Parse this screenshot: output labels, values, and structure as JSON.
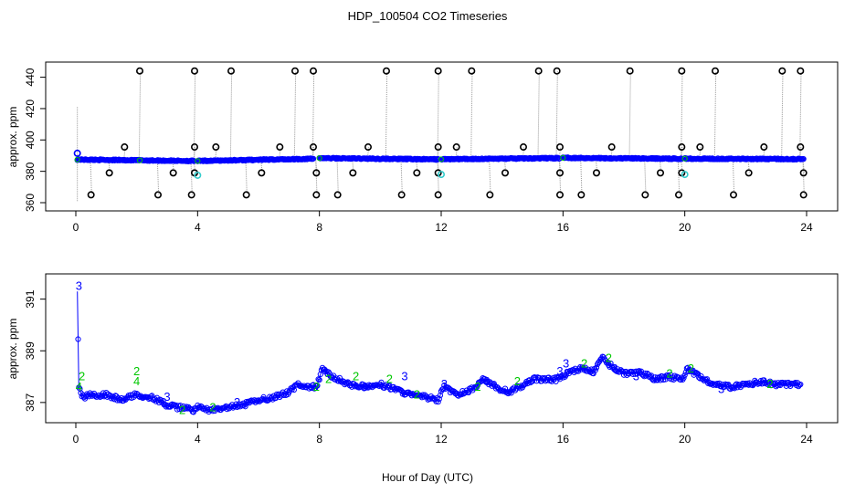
{
  "title": "HDP_100504  CO2 Timeseries",
  "xlabel": "Hour of Day (UTC)",
  "colors": {
    "frame": "#000000",
    "series_blue": "#0000ff",
    "series_green": "#00c800",
    "series_cyan": "#33cccc",
    "series_gray": "#9a9a9a"
  },
  "chart_data": [
    {
      "type": "scatter",
      "ylabel": "approx. ppm",
      "xlim": [
        0,
        24
      ],
      "ylim": [
        360,
        445
      ],
      "xticks": [
        0,
        4,
        8,
        12,
        16,
        20,
        24
      ],
      "yticks": [
        360,
        380,
        400,
        420,
        440
      ],
      "baseline_segments": [
        {
          "x": [
            0.05,
            2.1
          ],
          "y": [
            387.5,
            387.0
          ]
        },
        {
          "x": [
            2.1,
            3.9
          ],
          "y": [
            387.0,
            386.6
          ]
        },
        {
          "x": [
            4.0,
            7.8
          ],
          "y": [
            386.6,
            388.0
          ]
        },
        {
          "x": [
            8.0,
            11.9
          ],
          "y": [
            388.4,
            387.6
          ]
        },
        {
          "x": [
            12.0,
            15.9
          ],
          "y": [
            387.7,
            388.4
          ]
        },
        {
          "x": [
            16.0,
            19.9
          ],
          "y": [
            388.6,
            388.0
          ]
        },
        {
          "x": [
            20.0,
            23.9
          ],
          "y": [
            388.1,
            387.8
          ]
        }
      ],
      "outliers_high": [
        2.1,
        3.9,
        5.1,
        7.2,
        7.8,
        10.2,
        11.9,
        13.0,
        15.2,
        15.8,
        18.2,
        19.9,
        21.0,
        23.2,
        23.8
      ],
      "outliers_low": [
        0.5,
        2.7,
        3.8,
        5.6,
        7.9,
        8.6,
        10.7,
        11.9,
        13.6,
        15.9,
        16.6,
        18.7,
        19.8,
        21.6,
        23.9
      ],
      "outliers_mid_high": [
        1.6,
        3.9,
        4.6,
        6.7,
        7.8,
        9.6,
        11.9,
        12.5,
        14.7,
        15.9,
        17.6,
        19.9,
        20.5,
        22.6,
        23.8
      ],
      "outliers_mid_low": [
        1.1,
        3.2,
        3.9,
        6.1,
        7.9,
        9.1,
        11.2,
        11.9,
        14.1,
        15.9,
        17.1,
        19.2,
        19.9,
        22.1,
        23.9
      ],
      "cyan_points": [
        {
          "x": 4.0,
          "y": 377.5
        },
        {
          "x": 12.0,
          "y": 378.0
        },
        {
          "x": 20.0,
          "y": 378.0
        }
      ],
      "start_point": {
        "x": 0.05,
        "y": 391.5
      }
    },
    {
      "type": "line",
      "ylabel": "approx. ppm",
      "xlim": [
        0,
        24
      ],
      "ylim": [
        386.5,
        391.8
      ],
      "xticks": [
        0,
        4,
        8,
        12,
        16,
        20,
        24
      ],
      "yticks": [
        387,
        389,
        391
      ],
      "series": [
        {
          "x": [
            0.05,
            0.1,
            0.2,
            0.5,
            1.0,
            1.5,
            2.0,
            2.5,
            3.0,
            3.3,
            3.6,
            3.9,
            4.0,
            4.5,
            5.0,
            5.5,
            6.0,
            6.5,
            7.0,
            7.3,
            7.6,
            7.9,
            8.1,
            8.3,
            8.6,
            9.0,
            9.5,
            10.0,
            10.5,
            11.0,
            11.5,
            11.9,
            12.1,
            12.5,
            13.0,
            13.4,
            13.8,
            14.2,
            14.6,
            15.0,
            15.5,
            15.9,
            16.2,
            16.6,
            17.0,
            17.3,
            17.6,
            18.0,
            18.5,
            19.0,
            19.5,
            19.9,
            20.1,
            20.6,
            21.0,
            21.5,
            22.0,
            22.5,
            23.0,
            23.5,
            23.8
          ],
          "y": [
            391.3,
            387.6,
            387.2,
            387.3,
            387.3,
            387.1,
            387.3,
            387.2,
            386.9,
            386.8,
            386.8,
            386.7,
            386.8,
            386.7,
            386.8,
            386.9,
            387.1,
            387.2,
            387.4,
            387.7,
            387.6,
            387.6,
            388.3,
            388.1,
            387.9,
            387.7,
            387.6,
            387.7,
            387.5,
            387.3,
            387.2,
            387.1,
            387.6,
            387.3,
            387.5,
            387.9,
            387.6,
            387.4,
            387.6,
            387.9,
            387.9,
            387.9,
            388.2,
            388.3,
            388.2,
            388.7,
            388.4,
            388.1,
            388.2,
            387.9,
            388.0,
            387.9,
            388.3,
            387.9,
            387.7,
            387.6,
            387.7,
            387.8,
            387.7,
            387.7,
            387.7
          ]
        }
      ],
      "label_3": [
        {
          "x": 0.1,
          "y": 391.5
        },
        {
          "x": 3.0,
          "y": 387.2
        },
        {
          "x": 5.3,
          "y": 387.0
        },
        {
          "x": 9.5,
          "y": 387.6
        },
        {
          "x": 10.8,
          "y": 388.0
        },
        {
          "x": 12.1,
          "y": 387.7
        },
        {
          "x": 13.5,
          "y": 387.8
        },
        {
          "x": 15.9,
          "y": 388.2
        },
        {
          "x": 16.1,
          "y": 388.5
        },
        {
          "x": 17.7,
          "y": 388.3
        },
        {
          "x": 18.4,
          "y": 388.0
        },
        {
          "x": 19.1,
          "y": 387.9
        },
        {
          "x": 21.2,
          "y": 387.5
        }
      ],
      "label_2": [
        {
          "x": 0.2,
          "y": 388.0
        },
        {
          "x": 2.0,
          "y": 388.2
        },
        {
          "x": 3.5,
          "y": 386.7
        },
        {
          "x": 4.5,
          "y": 386.8
        },
        {
          "x": 7.9,
          "y": 387.6
        },
        {
          "x": 8.3,
          "y": 387.9
        },
        {
          "x": 9.2,
          "y": 388.0
        },
        {
          "x": 10.3,
          "y": 387.9
        },
        {
          "x": 11.2,
          "y": 387.3
        },
        {
          "x": 13.2,
          "y": 387.6
        },
        {
          "x": 14.5,
          "y": 387.8
        },
        {
          "x": 16.7,
          "y": 388.5
        },
        {
          "x": 17.5,
          "y": 388.7
        },
        {
          "x": 19.5,
          "y": 388.1
        },
        {
          "x": 20.2,
          "y": 388.3
        },
        {
          "x": 22.8,
          "y": 387.7
        }
      ],
      "label_4": [
        {
          "x": 0.1,
          "y": 387.6
        },
        {
          "x": 2.0,
          "y": 387.8
        }
      ]
    }
  ]
}
